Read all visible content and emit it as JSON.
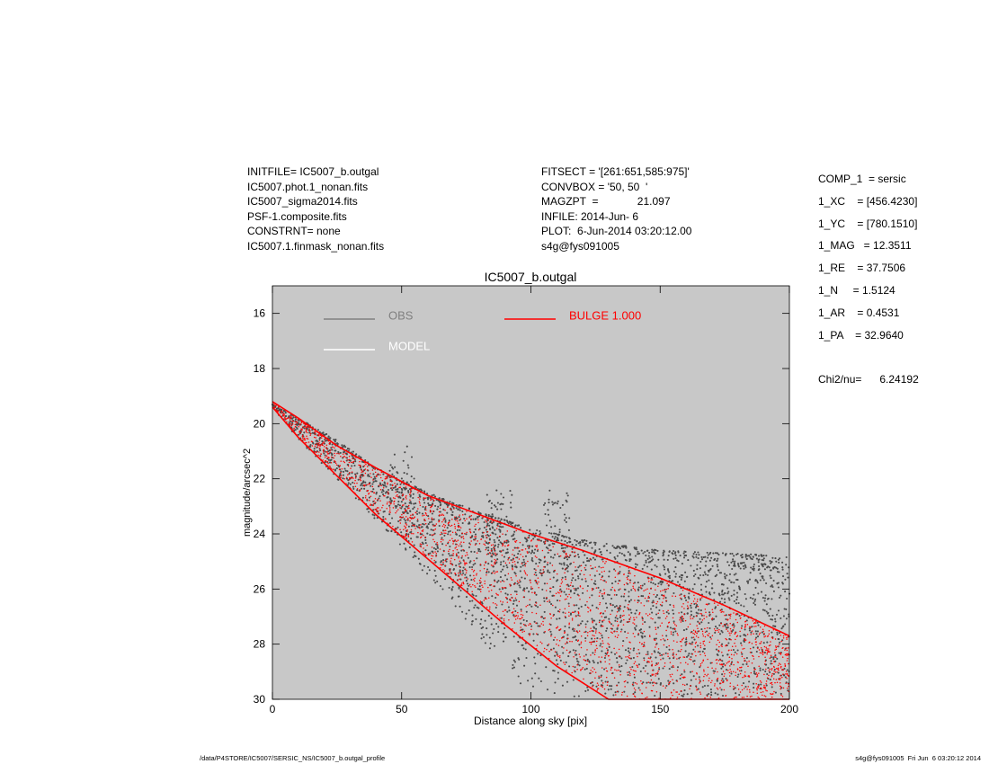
{
  "header": {
    "left_lines": [
      "INITFILE= IC5007_b.outgal",
      "IC5007.phot.1_nonan.fits",
      "IC5007_sigma2014.fits",
      "PSF-1.composite.fits",
      "CONSTRNT= none",
      "IC5007.1.finmask_nonan.fits"
    ],
    "mid_lines": [
      "FITSECT = '[261:651,585:975]'",
      "CONVBOX = '50, 50  '",
      "MAGZPT  =             21.097",
      "INFILE: 2014-Jun- 6",
      "PLOT:  6-Jun-2014 03:20:12.00",
      "s4g@fys091005"
    ],
    "right_lines": [
      "COMP_1  = sersic",
      "1_XC    = [456.4230]",
      "1_YC    = [780.1510]",
      "1_MAG   = 12.3511",
      "1_RE    = 37.7506",
      "1_N     = 1.5124",
      "1_AR    = 0.4531",
      "1_PA    = 32.9640",
      "",
      "Chi2/nu=      6.24192"
    ]
  },
  "footer": {
    "left": "/data/P4STORE/IC5007/SERSIC_NS/IC5007_b.outgal_profile",
    "right": "s4g@fys091005  Fri Jun  6 03:20:12 2014"
  },
  "colors": {
    "plot_bg": "#c8c8c8",
    "obs": "#4a4a4a",
    "obs_legend": "#808080",
    "model": "#ffffff",
    "bulge": "#ff0000"
  },
  "chart_data": {
    "type": "scatter",
    "title": "IC5007_b.outgal",
    "xlabel": "Distance along sky [pix]",
    "ylabel": "magnitude/arcsec^2",
    "xlim": [
      0,
      200
    ],
    "ylim": [
      30,
      15
    ],
    "y_inverted": true,
    "xticks": [
      "0",
      "50",
      "100",
      "150",
      "200"
    ],
    "yticks": [
      "16",
      "18",
      "20",
      "22",
      "24",
      "26",
      "28",
      "30"
    ],
    "grid": false,
    "legend": [
      {
        "name": "OBS",
        "color": "#808080"
      },
      {
        "name": "MODEL",
        "color": "#ffffff"
      },
      {
        "name": "BULGE  1.000",
        "color": "#ff0000"
      }
    ],
    "series": [
      {
        "name": "OBS",
        "description_x": "distance [pix]",
        "upper_envelope": [
          [
            0,
            19.3
          ],
          [
            10,
            19.8
          ],
          [
            25,
            20.6
          ],
          [
            40,
            21.6
          ],
          [
            60,
            22.5
          ],
          [
            80,
            23.2
          ],
          [
            100,
            23.8
          ],
          [
            125,
            24.3
          ],
          [
            150,
            24.6
          ],
          [
            175,
            24.7
          ],
          [
            200,
            24.8
          ]
        ],
        "lower_envelope": [
          [
            0,
            19.4
          ],
          [
            10,
            20.6
          ],
          [
            25,
            22.0
          ],
          [
            40,
            23.5
          ],
          [
            55,
            25.0
          ],
          [
            70,
            26.6
          ],
          [
            85,
            28.3
          ],
          [
            95,
            29.5
          ],
          [
            110,
            30.0
          ],
          [
            200,
            30.0
          ]
        ],
        "bumps": [
          [
            50,
            20.8
          ],
          [
            88,
            22.3
          ],
          [
            110,
            22.4
          ]
        ]
      },
      {
        "name": "BULGE  1.000",
        "upper_envelope": [
          [
            0,
            19.2
          ],
          [
            10,
            19.8
          ],
          [
            25,
            20.8
          ],
          [
            40,
            21.6
          ],
          [
            60,
            22.6
          ],
          [
            80,
            23.3
          ],
          [
            100,
            24.0
          ],
          [
            120,
            24.6
          ],
          [
            150,
            25.6
          ],
          [
            175,
            26.6
          ],
          [
            200,
            27.7
          ]
        ],
        "lower_envelope": [
          [
            0,
            19.4
          ],
          [
            10,
            20.5
          ],
          [
            25,
            21.9
          ],
          [
            40,
            23.3
          ],
          [
            55,
            24.5
          ],
          [
            70,
            25.7
          ],
          [
            90,
            27.3
          ],
          [
            110,
            28.8
          ],
          [
            130,
            30.0
          ],
          [
            200,
            30.0
          ]
        ]
      }
    ]
  }
}
